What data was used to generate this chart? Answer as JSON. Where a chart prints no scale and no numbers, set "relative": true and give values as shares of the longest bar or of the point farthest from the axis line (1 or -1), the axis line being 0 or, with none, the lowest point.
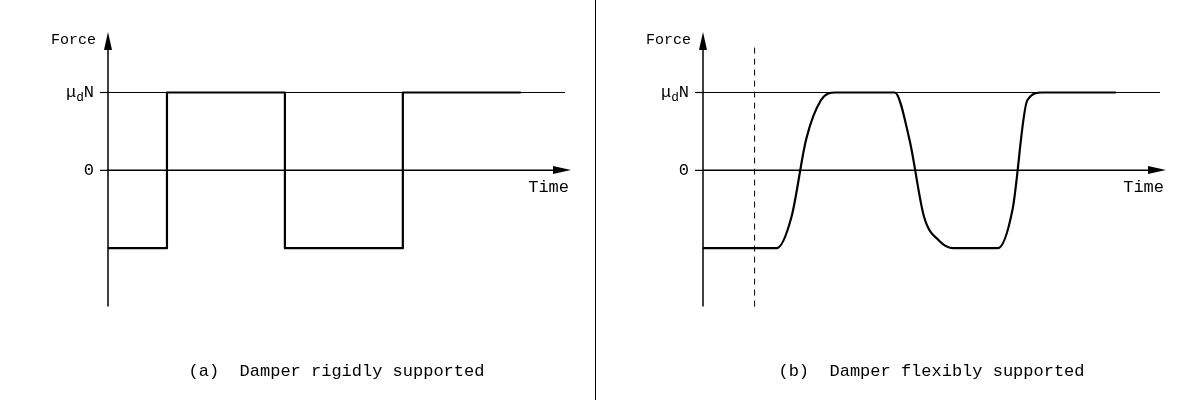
{
  "chart_data": [
    {
      "type": "step",
      "title": "(a)  Damper rigidly supported",
      "xlabel": "Time",
      "ylabel": "Force",
      "categories": [
        null,
        null,
        null,
        null,
        null,
        null,
        null,
        null,
        null,
        null,
        null,
        null,
        null,
        null,
        null,
        null,
        null,
        null,
        null,
        null,
        null,
        null,
        null,
        null,
        null,
        null,
        null,
        null,
        null,
        null,
        null,
        null
      ],
      "series": [
        {
          "color": "#000000",
          "values": [
            -1,
            -1,
            -1,
            -1,
            -1,
            1,
            1,
            1,
            1,
            1,
            1,
            1,
            1,
            -1,
            -1,
            -1,
            -1,
            -1,
            -1,
            -1,
            -1,
            1,
            1,
            1,
            1,
            1,
            1,
            1,
            1,
            null,
            null,
            null
          ]
        }
      ],
      "relative": true,
      "annotations": [
        "μ$_{d}$N",
        "0"
      ],
      "ref_lines": [
        {
          "axis": "y",
          "value": 1,
          "color": "#000000"
        }
      ],
      "grid": false,
      "legend": false,
      "marker": "none",
      "line_style": "solid"
    },
    {
      "type": "line",
      "title": "(b)  Damper flexibly supported",
      "xlabel": "Time",
      "ylabel": "Force",
      "categories": [
        null,
        null,
        null,
        null,
        null,
        null,
        null,
        null,
        null,
        null,
        null,
        null,
        null,
        null,
        null,
        null,
        null,
        null,
        null,
        null,
        null,
        null,
        null,
        null,
        null,
        null,
        null,
        null,
        null,
        null,
        null,
        null
      ],
      "series": [
        {
          "color": "#000000",
          "values": [
            -1,
            -1,
            -1,
            -1,
            -1,
            -1,
            -0.6,
            0.4,
            0.9,
            1,
            1,
            1,
            1,
            1,
            0.4,
            -0.6,
            -0.9,
            -1,
            -1,
            -1,
            -1,
            -0.5,
            0.9,
            1,
            1,
            1,
            1,
            1,
            1,
            null,
            null,
            null
          ]
        }
      ],
      "relative": true,
      "annotations": [
        "μ$_{d}$N",
        "0"
      ],
      "ref_lines": [
        {
          "axis": "y",
          "value": 1,
          "color": "#000000"
        }
      ],
      "grid": false,
      "legend": false,
      "marker": "none",
      "line_style": "solid"
    }
  ]
}
